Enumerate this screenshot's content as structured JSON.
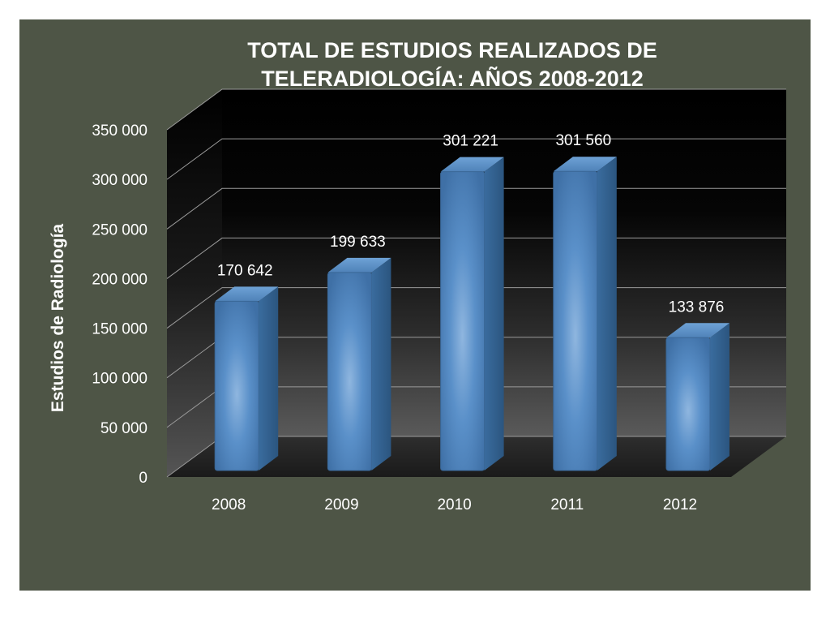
{
  "chart_data": {
    "type": "bar",
    "title": "TOTAL DE ESTUDIOS REALIZADOS DE TELERADIOLOGÍA: AÑOS 2008-2012",
    "title_lines": [
      "TOTAL DE ESTUDIOS REALIZADOS DE",
      "TELERADIOLOGÍA: AÑOS 2008-2012"
    ],
    "xlabel": "",
    "ylabel": "Estudios de Radiología",
    "categories": [
      "2008",
      "2009",
      "2010",
      "2011",
      "2012"
    ],
    "values": [
      170642,
      199633,
      301221,
      301560,
      133876
    ],
    "data_labels": [
      "170 642",
      "199 633",
      "301 221",
      "301 560",
      "133 876"
    ],
    "ylim": [
      0,
      350000
    ],
    "yticks": [
      0,
      50000,
      100000,
      150000,
      200000,
      250000,
      300000,
      350000
    ],
    "ytick_labels": [
      "0",
      "50 000",
      "100 000",
      "150 000",
      "200 000",
      "250 000",
      "300 000",
      "350 000"
    ],
    "grid": true,
    "legend": "none",
    "style": "3d-column",
    "colors": {
      "background": "#4e5546",
      "bar": "#4f81bd",
      "text": "#ffffff",
      "gridline": "#9a9a9a"
    }
  }
}
